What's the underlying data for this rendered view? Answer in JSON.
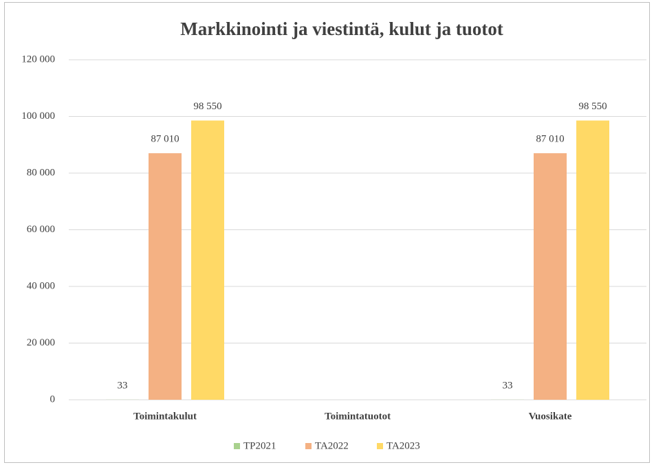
{
  "chart_data": {
    "type": "bar",
    "title": "Markkinointi ja viestintä, kulut ja tuotot",
    "categories": [
      "Toimintakulut",
      "Toimintatuotot",
      "Vuosikate"
    ],
    "series": [
      {
        "name": "TP2021",
        "color": "#a9d18e",
        "values": [
          33,
          null,
          33
        ],
        "value_labels": [
          "33",
          null,
          "33"
        ]
      },
      {
        "name": "TA2022",
        "color": "#f4b183",
        "values": [
          87010,
          null,
          87010
        ],
        "value_labels": [
          "87 010",
          null,
          "87 010"
        ]
      },
      {
        "name": "TA2023",
        "color": "#ffd966",
        "values": [
          98550,
          null,
          98550
        ],
        "value_labels": [
          "98 550",
          null,
          "98 550"
        ]
      }
    ],
    "ylim": [
      0,
      120000
    ],
    "yticks": [
      0,
      {
        "value": 20000,
        "label": "20 000"
      },
      {
        "value": 40000,
        "label": "40 000"
      },
      {
        "value": 60000,
        "label": "60 000"
      },
      {
        "value": 80000,
        "label": "80 000"
      },
      {
        "value": 100000,
        "label": "100 000"
      },
      {
        "value": 120000,
        "label": "120 000"
      }
    ],
    "grid": true,
    "legend": "bottom"
  }
}
